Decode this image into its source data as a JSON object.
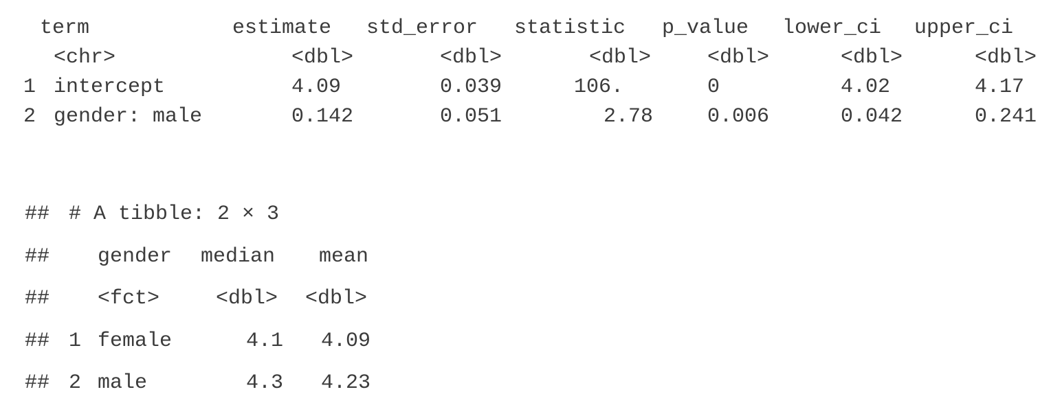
{
  "regression_table": {
    "headers": [
      "term",
      "estimate",
      "std_error",
      "statistic",
      "p_value",
      "lower_ci",
      "upper_ci"
    ],
    "types": [
      "<chr>",
      "<dbl>",
      "<dbl>",
      "<dbl>",
      "<dbl>",
      "<dbl>",
      "<dbl>"
    ],
    "rows": [
      {
        "index": "1",
        "cells": [
          "intercept",
          "4.09",
          "0.039",
          "106.",
          "0",
          "4.02",
          "4.17"
        ]
      },
      {
        "index": "2",
        "cells": [
          "gender: male",
          "0.142",
          "0.051",
          "2.78",
          "0.006",
          "0.042",
          "0.241"
        ]
      }
    ]
  },
  "tibble_output": {
    "prefix": "##",
    "title": "# A tibble: 2 × 3",
    "headers": [
      "gender",
      "median",
      "mean"
    ],
    "types": [
      "<fct>",
      "<dbl>",
      "<dbl>"
    ],
    "rows": [
      {
        "index": "1",
        "cells": [
          "female",
          "4.1",
          "4.09"
        ]
      },
      {
        "index": "2",
        "cells": [
          "male",
          "4.3",
          "4.23"
        ]
      }
    ]
  }
}
